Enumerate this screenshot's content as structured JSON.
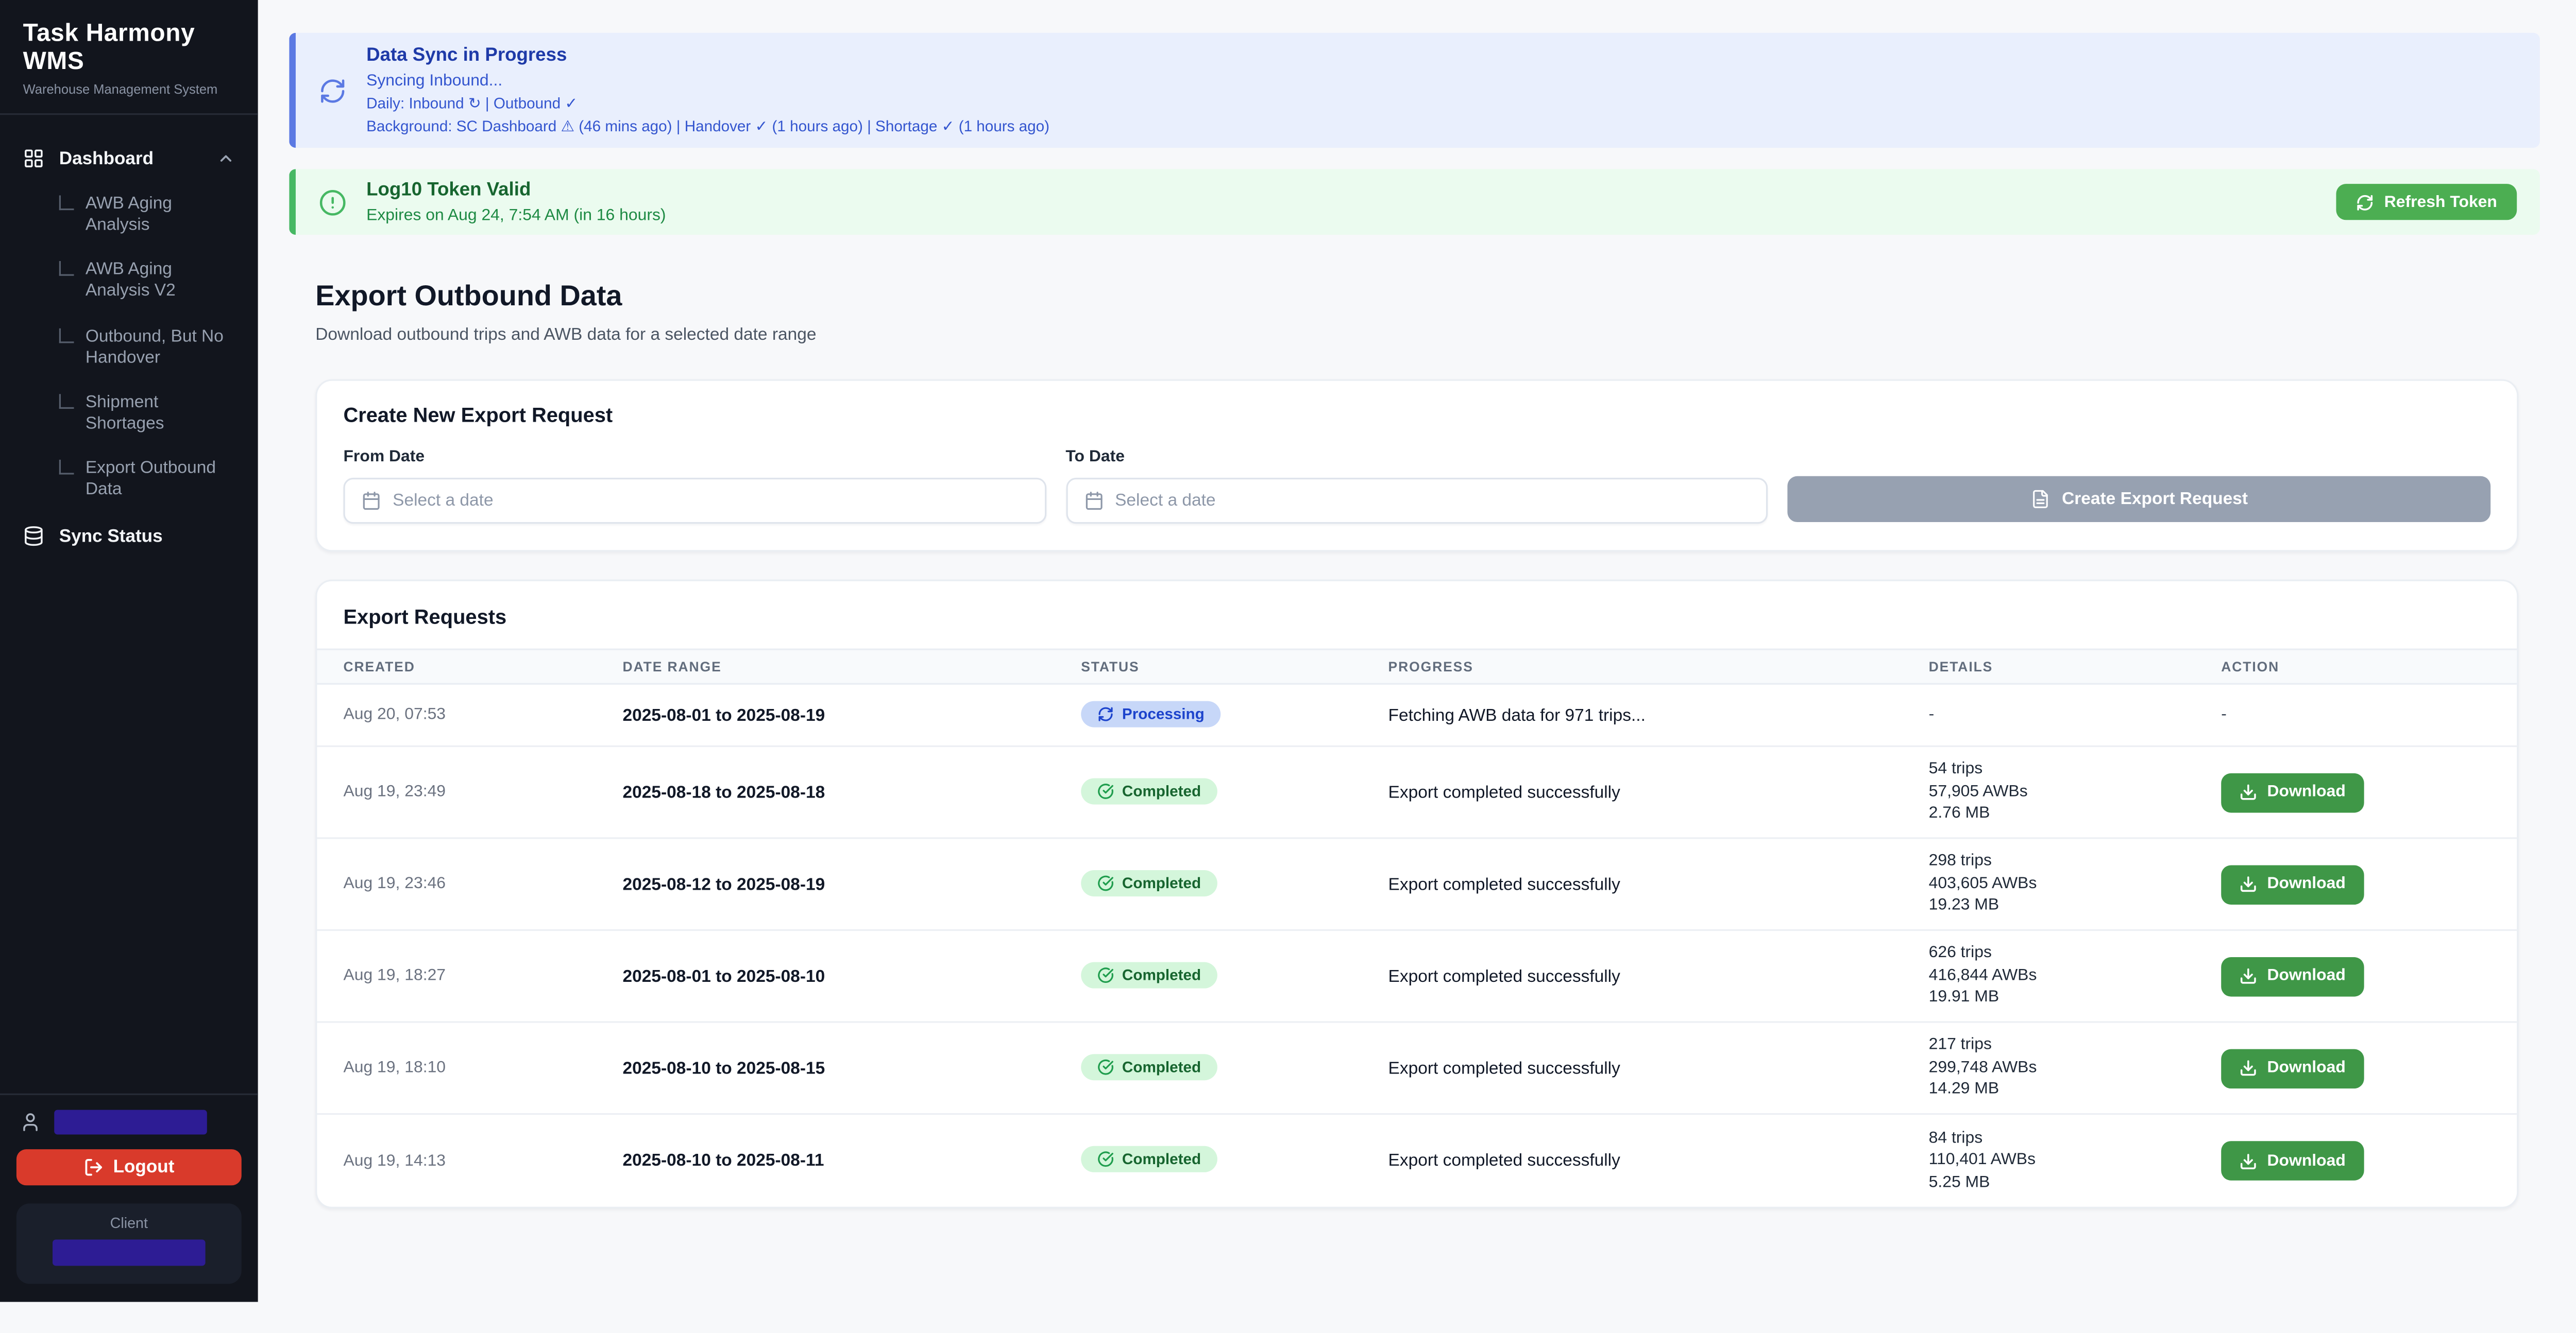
{
  "sidebar": {
    "title": "Task Harmony WMS",
    "subtitle": "Warehouse Management System",
    "nav": {
      "dashboard": "Dashboard",
      "items": [
        "AWB Aging Analysis",
        "AWB Aging Analysis V2",
        "Outbound, But No Handover",
        "Shipment Shortages",
        "Export Outbound Data"
      ],
      "sync_status": "Sync Status"
    },
    "logout_label": "Logout",
    "client_label": "Client"
  },
  "banners": {
    "sync": {
      "title": "Data Sync in Progress",
      "line1": "Syncing Inbound...",
      "line2": "Daily: Inbound ↻ | Outbound ✓",
      "line3": "Background: SC Dashboard ⚠ (46 mins ago) | Handover ✓ (1 hours ago) | Shortage ✓ (1 hours ago)"
    },
    "token": {
      "title": "Log10 Token Valid",
      "subtitle": "Expires on Aug 24, 7:54 AM (in 16 hours)",
      "button": "Refresh Token"
    }
  },
  "page": {
    "title": "Export Outbound Data",
    "subtitle": "Download outbound trips and AWB data for a selected date range"
  },
  "form": {
    "heading": "Create New Export Request",
    "from_label": "From Date",
    "to_label": "To Date",
    "date_placeholder": "Select a date",
    "submit_label": "Create Export Request"
  },
  "table": {
    "heading": "Export Requests",
    "columns": [
      "CREATED",
      "DATE RANGE",
      "STATUS",
      "PROGRESS",
      "DETAILS",
      "ACTION"
    ],
    "download_label": "Download",
    "rows": [
      {
        "created": "Aug 20, 07:53",
        "range": "2025-08-01 to 2025-08-19",
        "status": "Processing",
        "progress": "Fetching AWB data for 971 trips...",
        "details": "-",
        "action": "-"
      },
      {
        "created": "Aug 19, 23:49",
        "range": "2025-08-18 to 2025-08-18",
        "status": "Completed",
        "progress": "Export completed successfully",
        "trips": "54 trips",
        "awbs": "57,905 AWBs",
        "size": "2.76 MB"
      },
      {
        "created": "Aug 19, 23:46",
        "range": "2025-08-12 to 2025-08-19",
        "status": "Completed",
        "progress": "Export completed successfully",
        "trips": "298 trips",
        "awbs": "403,605 AWBs",
        "size": "19.23 MB"
      },
      {
        "created": "Aug 19, 18:27",
        "range": "2025-08-01 to 2025-08-10",
        "status": "Completed",
        "progress": "Export completed successfully",
        "trips": "626 trips",
        "awbs": "416,844 AWBs",
        "size": "19.91 MB"
      },
      {
        "created": "Aug 19, 18:10",
        "range": "2025-08-10 to 2025-08-15",
        "status": "Completed",
        "progress": "Export completed successfully",
        "trips": "217 trips",
        "awbs": "299,748 AWBs",
        "size": "14.29 MB"
      },
      {
        "created": "Aug 19, 14:13",
        "range": "2025-08-10 to 2025-08-11",
        "status": "Completed",
        "progress": "Export completed successfully",
        "trips": "84 trips",
        "awbs": "110,401 AWBs",
        "size": "5.25 MB"
      }
    ]
  },
  "colors": {
    "sidebar_bg": "#12151d",
    "logout_red": "#d93a2b",
    "redacted_purple": "#2d1c94",
    "info_blue": "#5b79e3",
    "success_green": "#46b863",
    "refresh_button_green": "#4cae52",
    "download_button_green": "#3f9747",
    "disabled_button_gray": "#97a1b1"
  }
}
